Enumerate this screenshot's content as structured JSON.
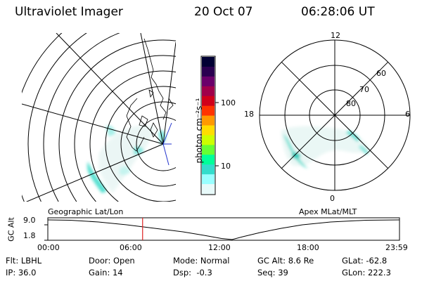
{
  "header": {
    "title": "Ultraviolet Imager",
    "date": "20 Oct 07",
    "time": "06:28:06 UT"
  },
  "left_panel": {
    "caption": "Geographic Lat/Lon"
  },
  "colorbar": {
    "unit_label": "photon cm⁻²s⁻¹",
    "ticks": [
      "100",
      "10"
    ],
    "colors": [
      "#000033",
      "#2a0050",
      "#6a006a",
      "#a0004a",
      "#d0001a",
      "#ff3300",
      "#ff9900",
      "#ffdd00",
      "#ccff00",
      "#66ff33",
      "#00ff99",
      "#33ddcc",
      "#99ffff",
      "#e8fafa"
    ]
  },
  "right_panel": {
    "caption": "Apex MLat/MLT",
    "mlt_labels": {
      "top": "12",
      "left": "18",
      "right": "6",
      "bottom": "0"
    },
    "lat_labels": [
      "60",
      "70",
      "80"
    ]
  },
  "timeline": {
    "ylabel": "GC Alt",
    "yticks": [
      "9.0",
      "1.8"
    ],
    "xticks": [
      "00:00",
      "06:00",
      "12:00",
      "18:00",
      "23:59"
    ],
    "current_time_fraction": 0.2695,
    "marker_color": "#dd2222"
  },
  "footer": {
    "row1": [
      "Flt: LBHL",
      "Door: Open",
      "Mode: Normal",
      "GC Alt: 8.6 Re",
      "GLat: -62.8"
    ],
    "row2": [
      "IP: 36.0",
      "Gain: 14",
      "Dsp:  -0.3",
      "Seq: 39",
      "GLon: 222.3"
    ]
  }
}
